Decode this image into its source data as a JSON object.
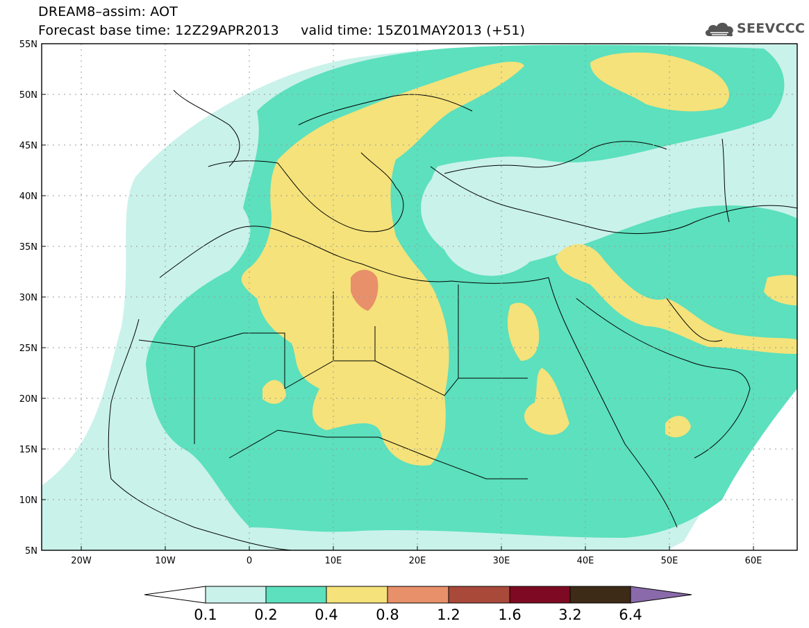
{
  "header": {
    "title_line1": "DREAM8–assim: AOT",
    "title_line2": "Forecast base time: 12Z29APR2013     valid time: 15Z01MAY2013 (+51)"
  },
  "logo": {
    "text": "SEEVCCC",
    "icon": "cloud-icon"
  },
  "map": {
    "lon_range": [
      -25,
      65
    ],
    "lat_range": [
      5,
      55
    ],
    "lat_ticks": [
      "55N",
      "50N",
      "45N",
      "40N",
      "35N",
      "30N",
      "25N",
      "20N",
      "15N",
      "10N",
      "5N"
    ],
    "lon_ticks": [
      "20W",
      "10W",
      "0",
      "10E",
      "20E",
      "30E",
      "40E",
      "50E",
      "60E"
    ],
    "grid": true
  },
  "colorbar": {
    "labels": [
      "0.1",
      "0.2",
      "0.4",
      "0.8",
      "1.2",
      "1.6",
      "3.2",
      "6.4"
    ],
    "colors": [
      "#ffffff",
      "#c9f2ea",
      "#5ce0bd",
      "#f5e27a",
      "#e8906a",
      "#a9493a",
      "#7d0a22",
      "#3d2a17",
      "#8a6aaa"
    ]
  },
  "palette": {
    "background": "#ffffff",
    "class_01_02": "#c9f2ea",
    "class_02_04": "#5ce0bd",
    "class_04_08": "#f5e27a",
    "class_08_12": "#e8906a"
  }
}
